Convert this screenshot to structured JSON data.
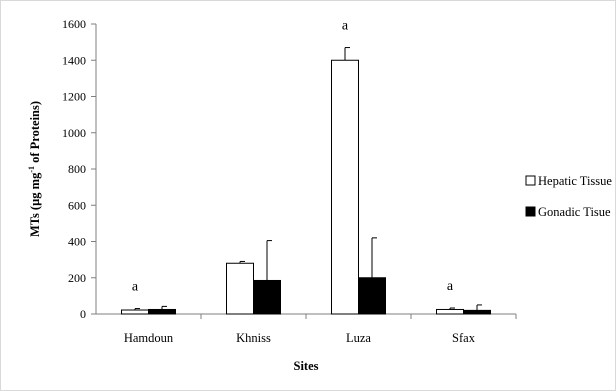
{
  "chart_data": {
    "type": "bar",
    "categories": [
      "Hamdoun",
      "Khniss",
      "Luza",
      "Sfax"
    ],
    "series": [
      {
        "name": "Hepatic Tissue",
        "values": [
          22,
          280,
          1400,
          25
        ],
        "error": [
          8,
          10,
          70,
          8
        ],
        "color": "#ffffff",
        "edge": "#000000"
      },
      {
        "name": "Gonadic Tisue",
        "values": [
          25,
          185,
          200,
          20
        ],
        "error": [
          17,
          220,
          220,
          30
        ],
        "color": "#000000",
        "edge": "#000000"
      }
    ],
    "annotations": [
      {
        "category": "Hamdoun",
        "text": "a"
      },
      {
        "category": "Luza",
        "text": "a"
      },
      {
        "category": "Sfax",
        "text": "a"
      }
    ],
    "xlabel": "Sites",
    "ylabel": {
      "prefix": "MTs (µg mg",
      "sup": "-1",
      "suffix": " of Proteins)"
    },
    "ylim": [
      0,
      1600
    ],
    "yticks": [
      0,
      200,
      400,
      600,
      800,
      1000,
      1200,
      1400,
      1600
    ],
    "grid": false,
    "legend_position": "right"
  }
}
